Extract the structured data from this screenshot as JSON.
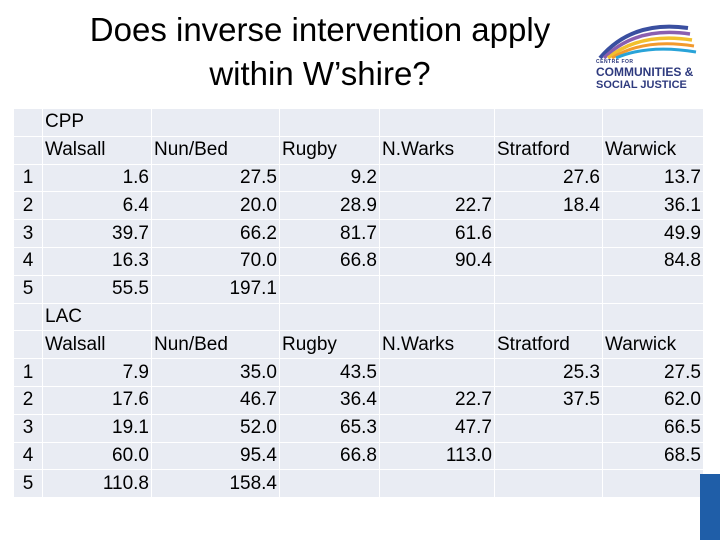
{
  "title": {
    "line1": "Does inverse intervention apply",
    "line2": "within W’shire?"
  },
  "logo": {
    "small": "CENTRE FOR",
    "line1": "COMMUNITIES &",
    "line2": "SOCIAL JUSTICE"
  },
  "cpp": {
    "section": "CPP",
    "headers": [
      "Walsall",
      "Nun/Bed",
      "Rugby",
      "N.Warks",
      "Stratford",
      "Warwick"
    ],
    "rows": [
      [
        "1",
        "1.6",
        "27.5",
        "9.2",
        "",
        "27.6",
        "13.7"
      ],
      [
        "2",
        "6.4",
        "20.0",
        "28.9",
        "22.7",
        "18.4",
        "36.1"
      ],
      [
        "3",
        "39.7",
        "66.2",
        "81.7",
        "61.6",
        "",
        "49.9"
      ],
      [
        "4",
        "16.3",
        "70.0",
        "66.8",
        "90.4",
        "",
        "84.8"
      ],
      [
        "5",
        "55.5",
        "197.1",
        "",
        "",
        "",
        ""
      ]
    ]
  },
  "lac": {
    "section": "LAC",
    "headers": [
      "Walsall",
      "Nun/Bed",
      "Rugby",
      "N.Warks",
      "Stratford",
      "Warwick"
    ],
    "rows": [
      [
        "1",
        "7.9",
        "35.0",
        "43.5",
        "",
        "25.3",
        "27.5"
      ],
      [
        "2",
        "17.6",
        "46.7",
        "36.4",
        "22.7",
        "37.5",
        "62.0"
      ],
      [
        "3",
        "19.1",
        "52.0",
        "65.3",
        "47.7",
        "",
        "66.5"
      ],
      [
        "4",
        "60.0",
        "95.4",
        "66.8",
        "113.0",
        "",
        "68.5"
      ],
      [
        "5",
        "110.8",
        "158.4",
        "",
        "",
        "",
        ""
      ]
    ]
  }
}
